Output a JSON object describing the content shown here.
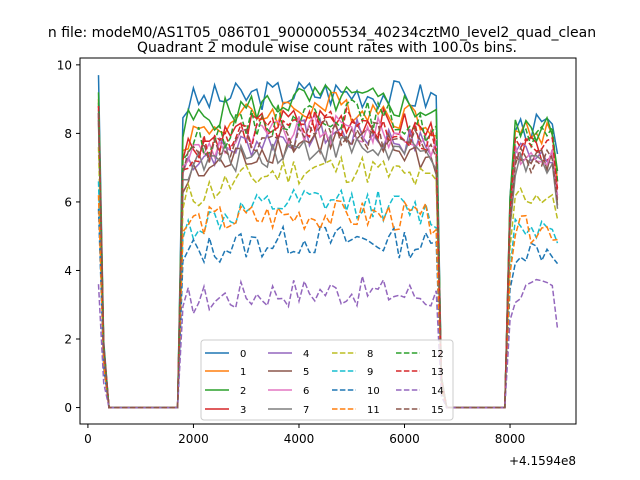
{
  "figure": {
    "suptitle": "n file: modeM0/AS1T05_086T01_9000005534_40234cztM0_level2_quad_clean",
    "title": "Quadrant 2 module wise count rates with 100.0s bins.",
    "x_offset_label": "+4.1594e8"
  },
  "chart_data": {
    "type": "line",
    "title": "Quadrant 2 module wise count rates with 100.0s bins.",
    "xlabel": "",
    "ylabel": "",
    "x_offset": 415940000,
    "xlim": [
      -150,
      9250
    ],
    "ylim": [
      -0.48,
      10.2
    ],
    "xticks": [
      0,
      2000,
      4000,
      6000,
      8000
    ],
    "yticks": [
      0,
      2,
      4,
      6,
      8,
      10
    ],
    "grid": false,
    "legend": {
      "placement": "lower-center",
      "ncol": 4
    },
    "segments": [
      {
        "start": 200,
        "end": 1700,
        "kind": "edge"
      },
      {
        "start": 1800,
        "end": 6600,
        "kind": "plateau"
      },
      {
        "start": 6600,
        "end": 8100,
        "kind": "edge"
      },
      {
        "start": 8100,
        "end": 8900,
        "kind": "plateau"
      }
    ],
    "edge_profile": {
      "x": [
        200,
        300,
        400,
        1700,
        1800,
        6600,
        6700,
        6800,
        7900,
        8000,
        8100
      ],
      "fraction": [
        1.0,
        0.2,
        0.0,
        0.0,
        0.95,
        0.95,
        0.1,
        0.0,
        0.0,
        0.7,
        1.0
      ]
    },
    "series": [
      {
        "name": "0",
        "color": "#1f77b4",
        "dash": "solid",
        "start": 9.7,
        "level": 8.9,
        "level_end": 9.2,
        "late_level": 8.2,
        "end": 7.4
      },
      {
        "name": "1",
        "color": "#ff7f0e",
        "dash": "solid",
        "start": 9.0,
        "level": 7.9,
        "level_end": 8.8,
        "late_level": 8.0,
        "end": 6.6
      },
      {
        "name": "2",
        "color": "#2ca02c",
        "dash": "solid",
        "start": 9.2,
        "level": 8.3,
        "level_end": 9.0,
        "late_level": 8.1,
        "end": 6.9
      },
      {
        "name": "3",
        "color": "#d62728",
        "dash": "solid",
        "start": 8.6,
        "level": 7.6,
        "level_end": 8.4,
        "late_level": 7.6,
        "end": 6.4
      },
      {
        "name": "4",
        "color": "#9467bd",
        "dash": "solid",
        "start": 8.5,
        "level": 7.2,
        "level_end": 8.0,
        "late_level": 7.5,
        "end": 6.2
      },
      {
        "name": "5",
        "color": "#8c564b",
        "dash": "solid",
        "start": 8.4,
        "level": 6.6,
        "level_end": 7.8,
        "late_level": 7.2,
        "end": 5.9
      },
      {
        "name": "6",
        "color": "#e377c2",
        "dash": "solid",
        "start": 8.7,
        "level": 7.4,
        "level_end": 8.1,
        "late_level": 7.3,
        "end": 6.1
      },
      {
        "name": "7",
        "color": "#7f7f7f",
        "dash": "solid",
        "start": 8.3,
        "level": 7.0,
        "level_end": 7.6,
        "late_level": 7.0,
        "end": 5.8
      },
      {
        "name": "8",
        "color": "#bcbd22",
        "dash": "dashed",
        "start": 7.6,
        "level": 6.1,
        "level_end": 7.0,
        "late_level": 6.2,
        "end": 5.5
      },
      {
        "name": "9",
        "color": "#17becf",
        "dash": "dashed",
        "start": 6.6,
        "level": 5.2,
        "level_end": 6.0,
        "late_level": 5.3,
        "end": 4.8
      },
      {
        "name": "10",
        "color": "#1f77b4",
        "dash": "dashed",
        "start": 5.8,
        "level": 4.5,
        "level_end": 4.9,
        "late_level": 4.6,
        "end": 4.2
      },
      {
        "name": "11",
        "color": "#ff7f0e",
        "dash": "dashed",
        "start": 6.2,
        "level": 5.4,
        "level_end": 5.6,
        "late_level": 5.2,
        "end": 4.9
      },
      {
        "name": "12",
        "color": "#2ca02c",
        "dash": "dashed",
        "start": 8.9,
        "level": 7.6,
        "level_end": 8.6,
        "late_level": 7.8,
        "end": 6.6
      },
      {
        "name": "13",
        "color": "#d62728",
        "dash": "dashed",
        "start": 8.8,
        "level": 7.3,
        "level_end": 8.3,
        "late_level": 7.6,
        "end": 6.3
      },
      {
        "name": "14",
        "color": "#9467bd",
        "dash": "dashed",
        "start": 3.6,
        "level": 3.1,
        "level_end": 3.4,
        "late_level": 3.4,
        "end": 2.3
      },
      {
        "name": "15",
        "color": "#8c564b",
        "dash": "dashed",
        "start": 8.6,
        "level": 7.2,
        "level_end": 8.0,
        "late_level": 7.2,
        "end": 6.0
      }
    ]
  }
}
